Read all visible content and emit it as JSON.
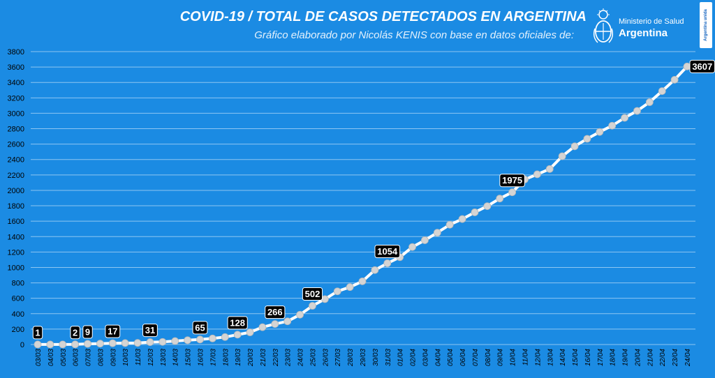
{
  "header": {
    "title": "COVID-19  /  TOTAL DE CASOS DETECTADOS EN ARGENTINA",
    "subtitle": "Gráfico elaborado por Nicolás KENIS con base en datos oficiales de:"
  },
  "logo": {
    "line1": "Ministerio de Salud",
    "line2": "Argentina",
    "icon": "argentina-coat-of-arms-icon"
  },
  "badge": {
    "text": "Argentina unida"
  },
  "colors": {
    "background": "#1b8be3",
    "line": "#ffffff",
    "marker": "#d4d4d4",
    "label_bg": "#000000",
    "label_text": "#ffffff",
    "grid": "#8ec6f2"
  },
  "chart_data": {
    "type": "line",
    "title": "COVID-19  /  TOTAL DE CASOS DETECTADOS EN ARGENTINA",
    "xlabel": "",
    "ylabel": "",
    "ylim": [
      0,
      3800
    ],
    "yticks": [
      0,
      200,
      400,
      600,
      800,
      1000,
      1200,
      1400,
      1600,
      1800,
      2000,
      2200,
      2400,
      2600,
      2800,
      3000,
      3200,
      3400,
      3600,
      3800
    ],
    "grid": true,
    "categories": [
      "03/03",
      "04/03",
      "05/03",
      "06/03",
      "07/03",
      "08/03",
      "09/03",
      "10/03",
      "11/03",
      "12/03",
      "13/03",
      "14/03",
      "15/03",
      "16/03",
      "17/03",
      "18/03",
      "19/03",
      "20/03",
      "21/03",
      "22/03",
      "23/03",
      "24/03",
      "25/03",
      "26/03",
      "27/03",
      "28/03",
      "29/03",
      "30/03",
      "31/03",
      "01/04",
      "02/04",
      "03/04",
      "04/04",
      "05/04",
      "06/04",
      "07/04",
      "08/04",
      "09/04",
      "10/04",
      "11/04",
      "12/04",
      "13/04",
      "14/04",
      "15/04",
      "16/04",
      "17/04",
      "18/04",
      "19/04",
      "20/04",
      "21/04",
      "22/04",
      "23/04",
      "24/04"
    ],
    "series": [
      {
        "values": [
          1,
          1,
          1,
          2,
          9,
          12,
          17,
          19,
          21,
          31,
          34,
          45,
          56,
          65,
          79,
          97,
          128,
          158,
          225,
          266,
          301,
          387,
          502,
          589,
          690,
          745,
          820,
          966,
          1054,
          1133,
          1265,
          1353,
          1451,
          1554,
          1628,
          1715,
          1795,
          1894,
          1975,
          2142,
          2208,
          2277,
          2443,
          2571,
          2669,
          2758,
          2839,
          2941,
          3031,
          3144,
          3288,
          3435,
          3607
        ]
      }
    ],
    "data_labels": [
      {
        "index": 0,
        "text": "1"
      },
      {
        "index": 3,
        "text": "2"
      },
      {
        "index": 4,
        "text": "9"
      },
      {
        "index": 6,
        "text": "17"
      },
      {
        "index": 9,
        "text": "31"
      },
      {
        "index": 13,
        "text": "65"
      },
      {
        "index": 16,
        "text": "128"
      },
      {
        "index": 19,
        "text": "266"
      },
      {
        "index": 22,
        "text": "502"
      },
      {
        "index": 28,
        "text": "1054"
      },
      {
        "index": 38,
        "text": "1975"
      },
      {
        "index": 52,
        "text": "3607"
      }
    ]
  }
}
